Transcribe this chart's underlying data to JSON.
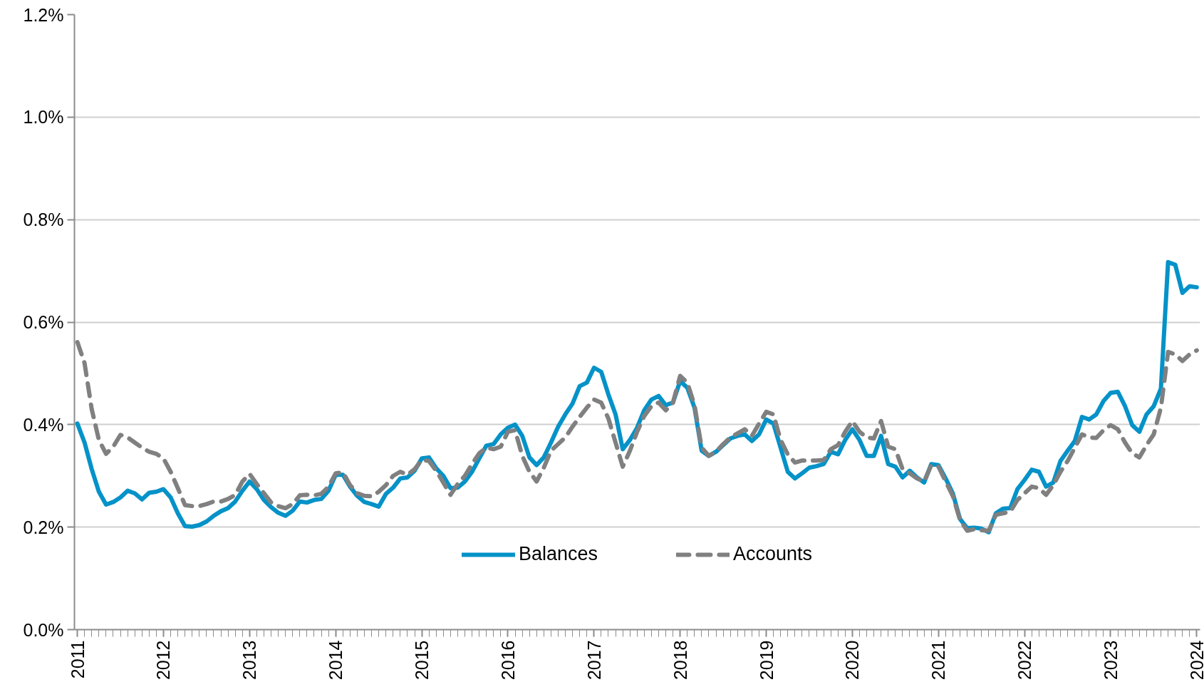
{
  "chart_data": {
    "type": "line",
    "x": [
      "2011-01",
      "2011-02",
      "2011-03",
      "2011-04",
      "2011-05",
      "2011-06",
      "2011-07",
      "2011-08",
      "2011-09",
      "2011-10",
      "2011-11",
      "2011-12",
      "2012-01",
      "2012-02",
      "2012-03",
      "2012-04",
      "2012-05",
      "2012-06",
      "2012-07",
      "2012-08",
      "2012-09",
      "2012-10",
      "2012-11",
      "2012-12",
      "2013-01",
      "2013-02",
      "2013-03",
      "2013-04",
      "2013-05",
      "2013-06",
      "2013-07",
      "2013-08",
      "2013-09",
      "2013-10",
      "2013-11",
      "2013-12",
      "2014-01",
      "2014-02",
      "2014-03",
      "2014-04",
      "2014-05",
      "2014-06",
      "2014-07",
      "2014-08",
      "2014-09",
      "2014-10",
      "2014-11",
      "2014-12",
      "2015-01",
      "2015-02",
      "2015-03",
      "2015-04",
      "2015-05",
      "2015-06",
      "2015-07",
      "2015-08",
      "2015-09",
      "2015-10",
      "2015-11",
      "2015-12",
      "2016-01",
      "2016-02",
      "2016-03",
      "2016-04",
      "2016-05",
      "2016-06",
      "2016-07",
      "2016-08",
      "2016-09",
      "2016-10",
      "2016-11",
      "2016-12",
      "2017-01",
      "2017-02",
      "2017-03",
      "2017-04",
      "2017-05",
      "2017-06",
      "2017-07",
      "2017-08",
      "2017-09",
      "2017-10",
      "2017-11",
      "2017-12",
      "2018-01",
      "2018-02",
      "2018-03",
      "2018-04",
      "2018-05",
      "2018-06",
      "2018-07",
      "2018-08",
      "2018-09",
      "2018-10",
      "2018-11",
      "2018-12",
      "2019-01",
      "2019-02",
      "2019-03",
      "2019-04",
      "2019-05",
      "2019-06",
      "2019-07",
      "2019-08",
      "2019-09",
      "2019-10",
      "2019-11",
      "2019-12",
      "2020-01",
      "2020-02",
      "2020-03",
      "2020-04",
      "2020-05",
      "2020-06",
      "2020-07",
      "2020-08",
      "2020-09",
      "2020-10",
      "2020-11",
      "2020-12",
      "2021-01",
      "2021-02",
      "2021-03",
      "2021-04",
      "2021-05",
      "2021-06",
      "2021-07",
      "2021-08",
      "2021-09",
      "2021-10",
      "2021-11",
      "2021-12",
      "2022-01",
      "2022-02",
      "2022-03",
      "2022-04",
      "2022-05",
      "2022-06",
      "2022-07",
      "2022-08",
      "2022-09",
      "2022-10",
      "2022-11",
      "2022-12",
      "2023-01",
      "2023-02",
      "2023-03",
      "2023-04",
      "2023-05",
      "2023-06",
      "2023-07",
      "2023-08",
      "2023-09",
      "2023-10",
      "2023-11",
      "2023-12",
      "2024-01"
    ],
    "series": [
      {
        "name": "Balances",
        "color": "#0492c8",
        "line_style": "solid",
        "values": [
          0.402,
          0.365,
          0.313,
          0.269,
          0.244,
          0.249,
          0.258,
          0.271,
          0.266,
          0.254,
          0.267,
          0.269,
          0.274,
          0.258,
          0.227,
          0.202,
          0.201,
          0.204,
          0.211,
          0.222,
          0.231,
          0.237,
          0.25,
          0.271,
          0.289,
          0.274,
          0.253,
          0.239,
          0.228,
          0.222,
          0.232,
          0.25,
          0.248,
          0.253,
          0.255,
          0.271,
          0.302,
          0.302,
          0.279,
          0.261,
          0.249,
          0.245,
          0.24,
          0.265,
          0.277,
          0.295,
          0.297,
          0.31,
          0.334,
          0.336,
          0.315,
          0.3,
          0.276,
          0.277,
          0.289,
          0.308,
          0.334,
          0.359,
          0.362,
          0.381,
          0.394,
          0.4,
          0.378,
          0.336,
          0.321,
          0.336,
          0.365,
          0.396,
          0.42,
          0.441,
          0.475,
          0.482,
          0.511,
          0.503,
          0.459,
          0.42,
          0.352,
          0.37,
          0.394,
          0.428,
          0.449,
          0.456,
          0.438,
          0.443,
          0.485,
          0.472,
          0.433,
          0.349,
          0.339,
          0.347,
          0.36,
          0.373,
          0.378,
          0.381,
          0.368,
          0.381,
          0.41,
          0.402,
          0.355,
          0.308,
          0.295,
          0.305,
          0.316,
          0.319,
          0.323,
          0.347,
          0.342,
          0.37,
          0.391,
          0.37,
          0.339,
          0.339,
          0.378,
          0.323,
          0.318,
          0.297,
          0.31,
          0.297,
          0.287,
          0.323,
          0.321,
          0.295,
          0.266,
          0.216,
          0.198,
          0.199,
          0.197,
          0.19,
          0.227,
          0.236,
          0.237,
          0.274,
          0.292,
          0.312,
          0.308,
          0.279,
          0.287,
          0.329,
          0.349,
          0.368,
          0.415,
          0.41,
          0.42,
          0.446,
          0.462,
          0.464,
          0.436,
          0.399,
          0.386,
          0.42,
          0.436,
          0.47,
          0.717,
          0.712,
          0.657,
          0.67,
          0.668
        ]
      },
      {
        "name": "Accounts",
        "color": "#808080",
        "line_style": "dashed",
        "values": [
          0.561,
          0.52,
          0.43,
          0.37,
          0.343,
          0.357,
          0.38,
          0.375,
          0.365,
          0.355,
          0.347,
          0.343,
          0.334,
          0.308,
          0.276,
          0.243,
          0.241,
          0.241,
          0.245,
          0.25,
          0.25,
          0.255,
          0.263,
          0.289,
          0.304,
          0.284,
          0.266,
          0.248,
          0.241,
          0.237,
          0.245,
          0.262,
          0.263,
          0.262,
          0.265,
          0.279,
          0.305,
          0.307,
          0.282,
          0.266,
          0.261,
          0.26,
          0.269,
          0.282,
          0.3,
          0.308,
          0.302,
          0.313,
          0.331,
          0.329,
          0.31,
          0.287,
          0.263,
          0.284,
          0.3,
          0.323,
          0.344,
          0.355,
          0.352,
          0.357,
          0.386,
          0.389,
          0.339,
          0.308,
          0.289,
          0.316,
          0.349,
          0.362,
          0.375,
          0.396,
          0.415,
          0.433,
          0.449,
          0.443,
          0.412,
          0.365,
          0.318,
          0.349,
          0.386,
          0.417,
          0.436,
          0.443,
          0.428,
          0.443,
          0.495,
          0.482,
          0.438,
          0.355,
          0.339,
          0.347,
          0.362,
          0.375,
          0.383,
          0.391,
          0.378,
          0.402,
          0.425,
          0.42,
          0.37,
          0.342,
          0.326,
          0.33,
          0.33,
          0.33,
          0.331,
          0.352,
          0.36,
          0.386,
          0.407,
          0.386,
          0.375,
          0.373,
          0.407,
          0.357,
          0.352,
          0.313,
          0.305,
          0.295,
          0.289,
          0.321,
          0.318,
          0.289,
          0.261,
          0.214,
          0.193,
          0.196,
          0.194,
          0.193,
          0.224,
          0.227,
          0.23,
          0.253,
          0.266,
          0.279,
          0.276,
          0.263,
          0.282,
          0.308,
          0.329,
          0.355,
          0.381,
          0.375,
          0.374,
          0.389,
          0.399,
          0.391,
          0.365,
          0.344,
          0.336,
          0.36,
          0.381,
          0.433,
          0.542,
          0.537,
          0.524,
          0.537,
          0.545
        ]
      }
    ],
    "xlim": [
      "2010-12-19",
      "2024-01-15"
    ],
    "xticks": [
      {
        "value": "2011",
        "label": "2011"
      },
      {
        "value": "2012",
        "label": "2012"
      },
      {
        "value": "2013",
        "label": "2013"
      },
      {
        "value": "2014",
        "label": "2014"
      },
      {
        "value": "2015",
        "label": "2015"
      },
      {
        "value": "2016",
        "label": "2016"
      },
      {
        "value": "2017",
        "label": "2017"
      },
      {
        "value": "2018",
        "label": "2018"
      },
      {
        "value": "2019",
        "label": "2019"
      },
      {
        "value": "2020",
        "label": "2020"
      },
      {
        "value": "2021",
        "label": "2021"
      },
      {
        "value": "2022",
        "label": "2022"
      },
      {
        "value": "2023",
        "label": "2023"
      },
      {
        "value": "2024",
        "label": "2024"
      }
    ],
    "ylim": [
      0,
      1.2
    ],
    "yticks": [
      {
        "value": 0,
        "label": "0.0%"
      },
      {
        "value": 0.2,
        "label": "0.2%"
      },
      {
        "value": 0.4,
        "label": "0.4%"
      },
      {
        "value": 0.6,
        "label": "0.6%"
      },
      {
        "value": 0.8,
        "label": "0.8%"
      },
      {
        "value": 1.0,
        "label": "1.0%"
      },
      {
        "value": 1.2,
        "label": "1.2%"
      }
    ],
    "grid": "y",
    "legend": "bottom",
    "marker": "none"
  }
}
